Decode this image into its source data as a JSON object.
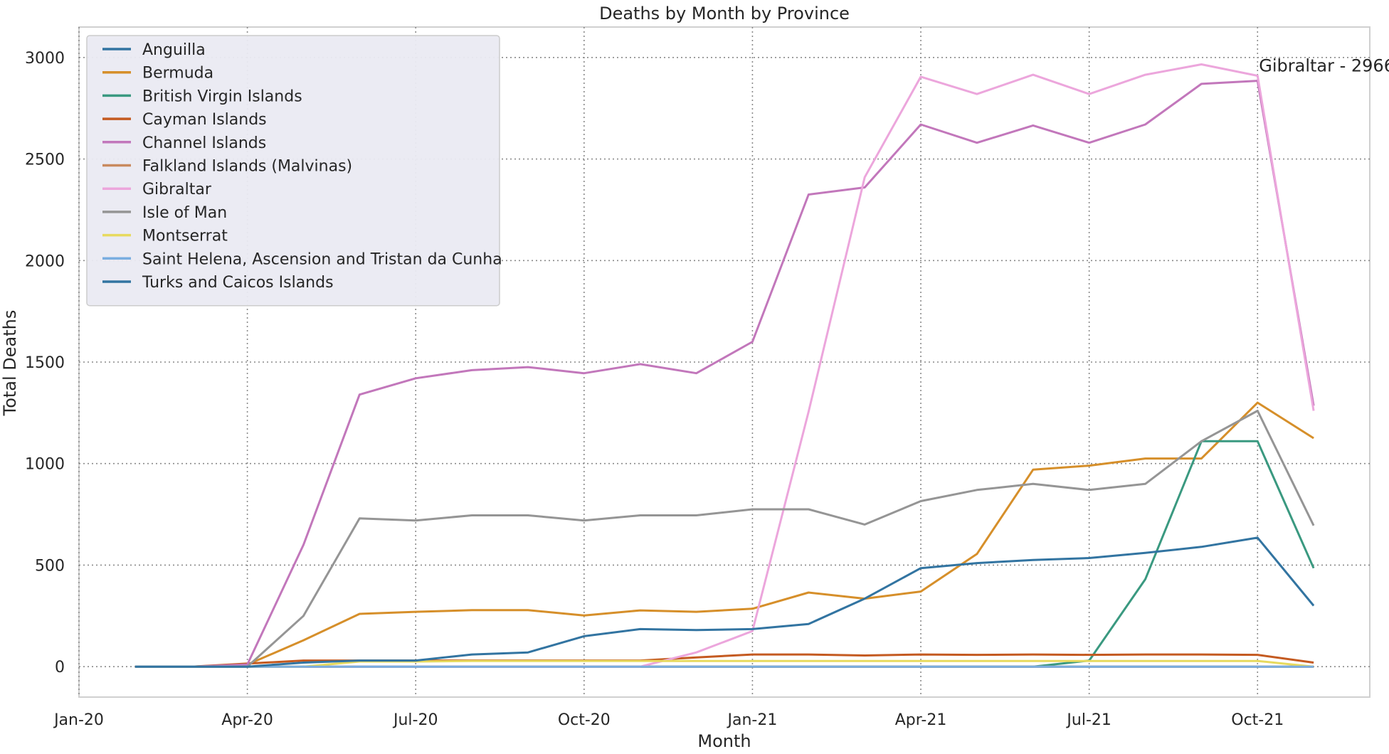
{
  "chart_data": {
    "type": "line",
    "title": "Deaths by Month by Province",
    "xlabel": "Month",
    "ylabel": "Total Deaths",
    "x": [
      "2020-02",
      "2020-03",
      "2020-04",
      "2020-05",
      "2020-06",
      "2020-07",
      "2020-08",
      "2020-09",
      "2020-10",
      "2020-11",
      "2020-12",
      "2021-01",
      "2021-02",
      "2021-03",
      "2021-04",
      "2021-05",
      "2021-06",
      "2021-07",
      "2021-08",
      "2021-09",
      "2021-10",
      "2021-11"
    ],
    "x_ticks": [
      "Jan-20",
      "Apr-20",
      "Jul-20",
      "Oct-20",
      "Jan-21",
      "Apr-21",
      "Jul-21",
      "Oct-21"
    ],
    "x_tick_dates": [
      "2020-01",
      "2020-04",
      "2020-07",
      "2020-10",
      "2021-01",
      "2021-04",
      "2021-07",
      "2021-10"
    ],
    "x_range": [
      "2020-01",
      "2021-12"
    ],
    "y_ticks": [
      0,
      500,
      1000,
      1500,
      2000,
      2500,
      3000
    ],
    "ylim": [
      -150,
      3150
    ],
    "grid": true,
    "grid_style": "dotted",
    "legend_position": "upper-left",
    "series": [
      {
        "name": "Anguilla",
        "color": "#3274a1",
        "values": [
          0,
          0,
          0,
          0,
          0,
          0,
          0,
          0,
          0,
          0,
          0,
          0,
          0,
          0,
          0,
          0,
          0,
          0,
          0,
          0,
          0,
          0
        ]
      },
      {
        "name": "Bermuda",
        "color": "#d68f2a",
        "values": [
          0,
          0,
          10,
          130,
          260,
          270,
          278,
          278,
          252,
          277,
          270,
          285,
          365,
          335,
          370,
          555,
          970,
          990,
          1025,
          1025,
          1300,
          1125
        ]
      },
      {
        "name": "British Virgin Islands",
        "color": "#3a9980",
        "values": [
          0,
          0,
          0,
          0,
          0,
          0,
          0,
          0,
          0,
          0,
          0,
          0,
          0,
          0,
          0,
          0,
          0,
          30,
          430,
          1110,
          1110,
          485
        ]
      },
      {
        "name": "Cayman Islands",
        "color": "#c45a20",
        "values": [
          0,
          0,
          15,
          30,
          30,
          30,
          30,
          30,
          30,
          30,
          45,
          60,
          60,
          55,
          60,
          58,
          60,
          58,
          60,
          60,
          58,
          20
        ]
      },
      {
        "name": "Channel Islands",
        "color": "#c277bb",
        "values": [
          0,
          0,
          10,
          600,
          1340,
          1420,
          1460,
          1475,
          1445,
          1490,
          1445,
          1600,
          2325,
          2360,
          2670,
          2580,
          2665,
          2580,
          2670,
          2870,
          2885,
          1285
        ]
      },
      {
        "name": "Falkland Islands (Malvinas)",
        "color": "#c98a5e",
        "values": [
          0,
          0,
          0,
          0,
          0,
          0,
          0,
          0,
          0,
          0,
          0,
          0,
          0,
          0,
          0,
          0,
          0,
          0,
          0,
          0,
          0,
          0
        ]
      },
      {
        "name": "Gibraltar",
        "color": "#eca6dc",
        "values": [
          0,
          0,
          0,
          0,
          0,
          0,
          0,
          0,
          0,
          0,
          70,
          175,
          1255,
          2410,
          2905,
          2820,
          2915,
          2820,
          2915,
          2966,
          2910,
          1260
        ]
      },
      {
        "name": "Isle of Man",
        "color": "#959595",
        "values": [
          0,
          0,
          0,
          250,
          730,
          720,
          745,
          745,
          720,
          745,
          745,
          775,
          775,
          700,
          815,
          870,
          900,
          870,
          900,
          1110,
          1260,
          695
        ]
      },
      {
        "name": "Montserrat",
        "color": "#e7da5e",
        "values": [
          0,
          0,
          0,
          0,
          25,
          25,
          28,
          28,
          28,
          28,
          28,
          28,
          28,
          28,
          28,
          28,
          28,
          28,
          28,
          28,
          28,
          0
        ]
      },
      {
        "name": "Saint Helena, Ascension and Tristan da Cunha",
        "color": "#7aaee0",
        "values": [
          0,
          0,
          0,
          0,
          0,
          0,
          0,
          0,
          0,
          0,
          0,
          0,
          0,
          0,
          0,
          0,
          0,
          0,
          0,
          0,
          0,
          0
        ]
      },
      {
        "name": "Turks and Caicos Islands",
        "color": "#3274a1",
        "values": [
          0,
          0,
          0,
          20,
          30,
          30,
          60,
          70,
          150,
          185,
          180,
          185,
          210,
          335,
          485,
          510,
          525,
          535,
          560,
          590,
          635,
          300
        ]
      }
    ],
    "annotations": [
      {
        "text": "Gibraltar - 2966",
        "x": "2021-10",
        "y": 2966
      }
    ]
  }
}
